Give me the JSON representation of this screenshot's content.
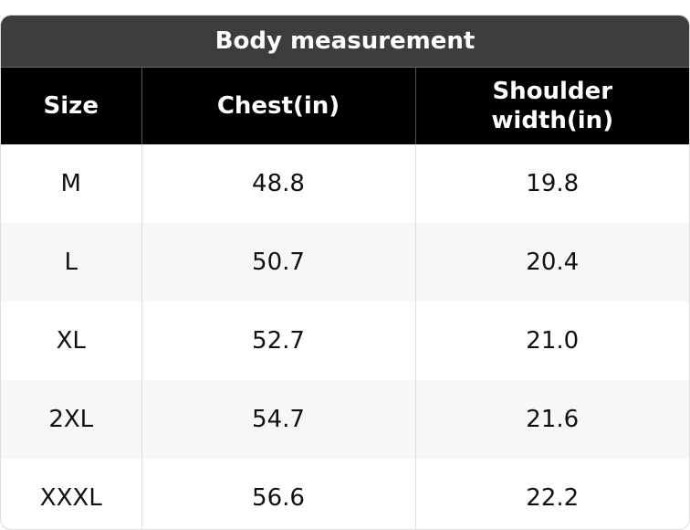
{
  "header": {
    "title": "Body measurement"
  },
  "table": {
    "columns": [
      "Size",
      "Chest(in)",
      "Shoulder width(in)"
    ],
    "rows": [
      [
        "M",
        "48.8",
        "19.8"
      ],
      [
        "L",
        "50.7",
        "20.4"
      ],
      [
        "XL",
        "52.7",
        "21.0"
      ],
      [
        "2XL",
        "54.7",
        "21.6"
      ],
      [
        "XXXL",
        "56.6",
        "22.2"
      ]
    ]
  }
}
